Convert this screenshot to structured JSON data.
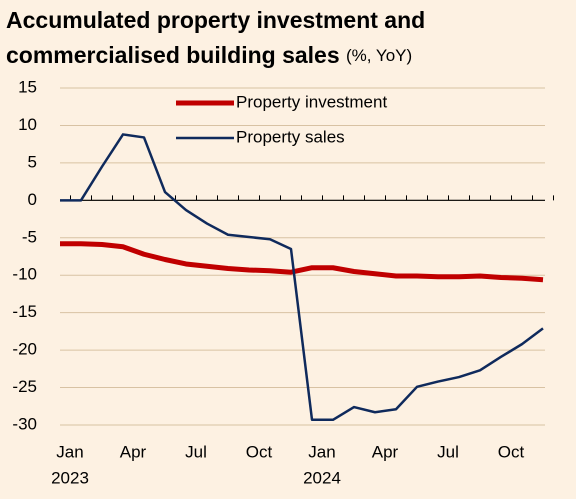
{
  "chart_data": {
    "type": "line",
    "title": [
      "Accumulated property investment and",
      "commercialised building sales"
    ],
    "subtitle": "(%, YoY)",
    "categories": [
      "Jan",
      null,
      null,
      "Apr",
      null,
      null,
      "Jul",
      null,
      null,
      "Oct",
      null,
      null,
      "Jan",
      null,
      null,
      "Apr",
      null,
      null,
      "Jul",
      null,
      null,
      "Oct",
      null,
      null
    ],
    "years": [
      "2023",
      "2024"
    ],
    "series": [
      {
        "name": "Property investment",
        "color": "#c00000",
        "values": [
          -5.8,
          -5.8,
          -5.9,
          -6.2,
          -7.2,
          -7.9,
          -8.5,
          -8.8,
          -9.1,
          -9.3,
          -9.4,
          -9.6,
          -9.0,
          -9.0,
          -9.5,
          -9.8,
          -10.1,
          -10.1,
          -10.2,
          -10.2,
          -10.1,
          -10.3,
          -10.4,
          -10.6
        ]
      },
      {
        "name": "Property sales",
        "color": "#0f2a5c",
        "values": [
          0,
          0,
          4.5,
          8.8,
          8.4,
          1.1,
          -1.3,
          -3.1,
          -4.6,
          -4.9,
          -5.2,
          -6.5,
          -29.3,
          -29.3,
          -27.6,
          -28.3,
          -27.9,
          -24.9,
          -24.2,
          -23.6,
          -22.7,
          -20.9,
          -19.2,
          -17.1
        ]
      }
    ],
    "ylim": [
      -30,
      15
    ],
    "yticks": [
      15,
      10,
      5,
      0,
      -5,
      -10,
      -15,
      -20,
      -25,
      -30
    ],
    "grid": true,
    "legend": "top-right"
  }
}
